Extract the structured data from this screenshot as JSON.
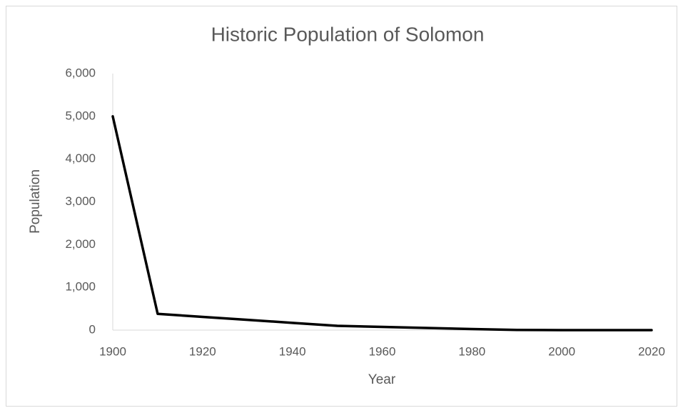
{
  "chart_data": {
    "type": "line",
    "title": "Historic Population of Solomon",
    "x_label": "Year",
    "y_label": "Population",
    "x": [
      1900,
      1910,
      1920,
      1930,
      1940,
      1950,
      1960,
      1970,
      1980,
      1990,
      2000,
      2010,
      2020
    ],
    "series": [
      {
        "name": "Population",
        "color": "#000000",
        "values": [
          5000,
          380,
          310,
          240,
          170,
          100,
          75,
          50,
          25,
          5,
          0,
          0,
          0
        ]
      }
    ],
    "xlim": [
      1900,
      2020
    ],
    "xticks": [
      1900,
      1920,
      1940,
      1960,
      1980,
      2000,
      2020
    ],
    "ylim": [
      0,
      6000
    ],
    "yticks": [
      0,
      {
        "value": 1000,
        "label": "1,000"
      },
      {
        "value": 2000,
        "label": "2,000"
      },
      {
        "value": 3000,
        "label": "3,000"
      },
      {
        "value": 4000,
        "label": "4,000"
      },
      {
        "value": 5000,
        "label": "5,000"
      },
      {
        "value": 6000,
        "label": "6,000"
      }
    ],
    "grid": false,
    "legend": false
  }
}
